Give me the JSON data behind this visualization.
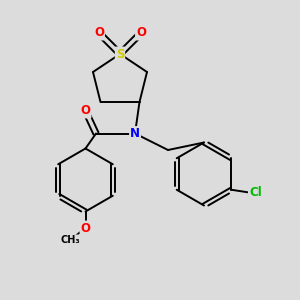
{
  "bg_color": "#dcdcdc",
  "bond_color": "#000000",
  "bond_width": 1.4,
  "atom_colors": {
    "N": "#0000ff",
    "O": "#ff0000",
    "S": "#cccc00",
    "Cl": "#00bb00",
    "C": "#000000"
  },
  "font_size_atom": 8.5
}
